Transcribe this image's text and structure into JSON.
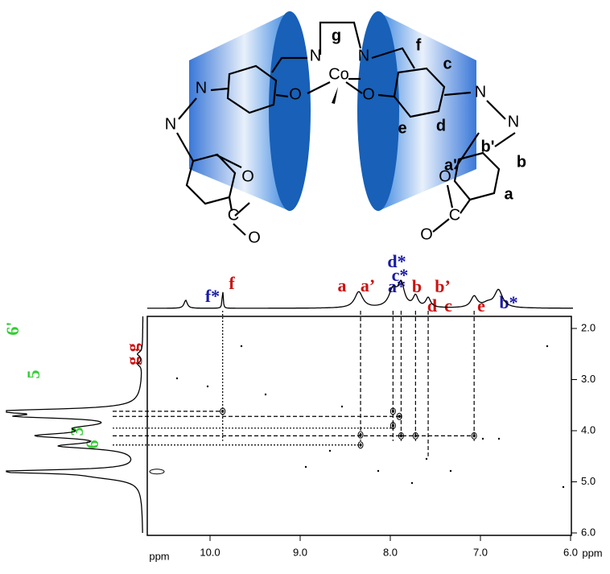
{
  "structure": {
    "labels": [
      "g",
      "N",
      "N",
      "Co",
      "O",
      "O",
      "f",
      "c",
      "e",
      "d",
      "N",
      "N",
      "b'",
      "b",
      "a'",
      "a",
      "O",
      "C",
      "O",
      "N",
      "N",
      "O",
      "C",
      "O"
    ]
  },
  "spectrum": {
    "top_peak_labels": [
      "f*",
      "f",
      "a",
      "a’",
      "d*",
      "c*",
      "a*",
      "b",
      "b’",
      "d",
      "c",
      "e",
      "b*"
    ],
    "left_peak_labels": [
      "g g",
      "6'",
      "5",
      "3",
      "6"
    ],
    "x_axis_label": "ppm",
    "y_axis_label": "ppm",
    "x_ticks": [
      "10.0",
      "9.0",
      "8.0",
      "7.0",
      "6.0"
    ],
    "y_ticks": [
      "2.0",
      "3.0",
      "4.0",
      "5.0",
      "6.0"
    ]
  }
}
